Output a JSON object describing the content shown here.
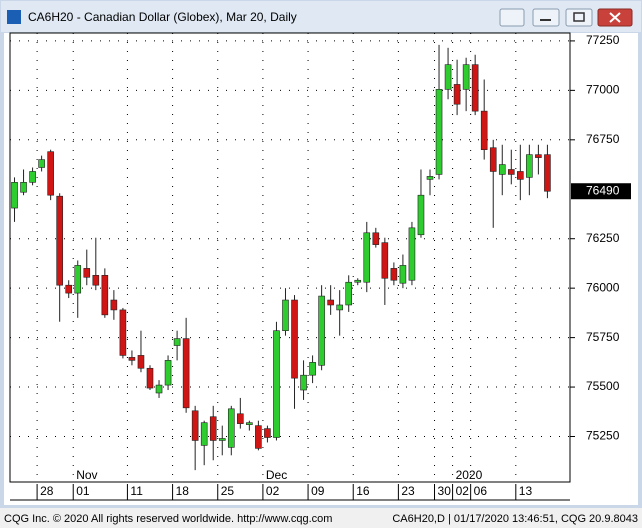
{
  "chart_data": {
    "type": "candlestick",
    "title": "CA6H20 - Canadian Dollar (Globex), Mar 20, Daily",
    "categories": [
      null,
      null,
      null,
      "28",
      null,
      null,
      null,
      "01",
      null,
      null,
      null,
      null,
      null,
      "11",
      null,
      null,
      null,
      null,
      "18",
      null,
      null,
      null,
      null,
      "25",
      null,
      null,
      null,
      null,
      "02",
      null,
      null,
      null,
      null,
      "09",
      null,
      null,
      null,
      null,
      "16",
      null,
      null,
      null,
      null,
      "23",
      null,
      null,
      null,
      "30",
      null,
      "02",
      null,
      "06",
      null,
      null,
      null,
      null,
      "13",
      null,
      null,
      null
    ],
    "months": [
      null,
      null,
      null,
      null,
      null,
      null,
      null,
      "Nov",
      null,
      null,
      null,
      null,
      null,
      null,
      null,
      null,
      null,
      null,
      null,
      null,
      null,
      null,
      null,
      null,
      null,
      null,
      null,
      null,
      "Dec",
      null,
      null,
      null,
      null,
      null,
      null,
      null,
      null,
      null,
      null,
      null,
      null,
      null,
      null,
      null,
      null,
      null,
      null,
      null,
      null,
      "2020",
      null,
      null,
      null,
      null,
      null,
      null,
      null,
      null,
      null,
      null
    ],
    "open": [
      76405,
      76485,
      76535,
      76610,
      76690,
      76465,
      76015,
      75975,
      76100,
      76065,
      76065,
      75940,
      75890,
      75650,
      75660,
      75595,
      75470,
      75510,
      75710,
      75745,
      75380,
      75205,
      75350,
      75230,
      75195,
      75365,
      75310,
      75305,
      75290,
      75245,
      75785,
      75940,
      75485,
      75560,
      75610,
      75940,
      75890,
      75915,
      76030,
      76030,
      76280,
      76230,
      76100,
      76025,
      76040,
      76270,
      76550,
      76575,
      77005,
      77030,
      77005,
      77130,
      76895,
      76710,
      76575,
      76600,
      76590,
      76560,
      76675,
      76675
    ],
    "high": [
      76560,
      76600,
      76610,
      76670,
      76700,
      76480,
      76040,
      76140,
      76195,
      76255,
      76100,
      75990,
      75900,
      75685,
      75785,
      75610,
      75535,
      75660,
      75785,
      75850,
      75405,
      75330,
      75405,
      75305,
      75405,
      75445,
      75330,
      75330,
      75305,
      75830,
      76000,
      75965,
      75635,
      75660,
      76015,
      76015,
      75990,
      76065,
      76050,
      76335,
      76305,
      76255,
      76130,
      76170,
      76335,
      76600,
      76600,
      77230,
      77215,
      77155,
      77165,
      77180,
      77055,
      76750,
      76725,
      76700,
      76725,
      76725,
      76725,
      76725
    ],
    "low": [
      76335,
      76470,
      76520,
      76590,
      76445,
      75830,
      75950,
      75850,
      76015,
      75990,
      75850,
      75840,
      75645,
      75610,
      75575,
      75485,
      75445,
      75485,
      75635,
      75370,
      75080,
      75105,
      75130,
      75155,
      75155,
      75290,
      75280,
      75180,
      75220,
      75230,
      75760,
      75390,
      75435,
      75520,
      75585,
      75865,
      75760,
      75880,
      76015,
      75980,
      76205,
      75915,
      76015,
      76000,
      76015,
      76255,
      76470,
      76550,
      76955,
      76875,
      76895,
      76875,
      76650,
      76305,
      76470,
      76525,
      76445,
      76470,
      76575,
      76455
    ],
    "close": [
      76535,
      76535,
      76590,
      76650,
      76470,
      76015,
      75975,
      76115,
      76055,
      76015,
      75865,
      75890,
      75660,
      75635,
      75595,
      75495,
      75510,
      75635,
      75745,
      75395,
      75230,
      75320,
      75230,
      75240,
      75390,
      75315,
      75320,
      75190,
      75245,
      75785,
      75940,
      75545,
      75560,
      75625,
      75960,
      75915,
      75915,
      76030,
      76040,
      76280,
      76220,
      76050,
      76040,
      76115,
      76305,
      76470,
      76565,
      77005,
      77130,
      76930,
      77130,
      76895,
      76700,
      76590,
      76625,
      76575,
      76550,
      76675,
      76660,
      76490
    ],
    "up_color": "#2ecc2e",
    "down_color": "#d01515",
    "ylim": [
      75020,
      77290
    ],
    "yticks": [
      75250,
      75500,
      75750,
      76000,
      76250,
      76750,
      77000,
      77250
    ],
    "grid": true,
    "last_price": 76490
  },
  "footer": {
    "left": "CQG Inc. © 2020 All rights reserved worldwide. http://www.cqg.com",
    "right": "CA6H20,D | 01/17/2020 13:46:51, CQG 20.9.8043"
  }
}
